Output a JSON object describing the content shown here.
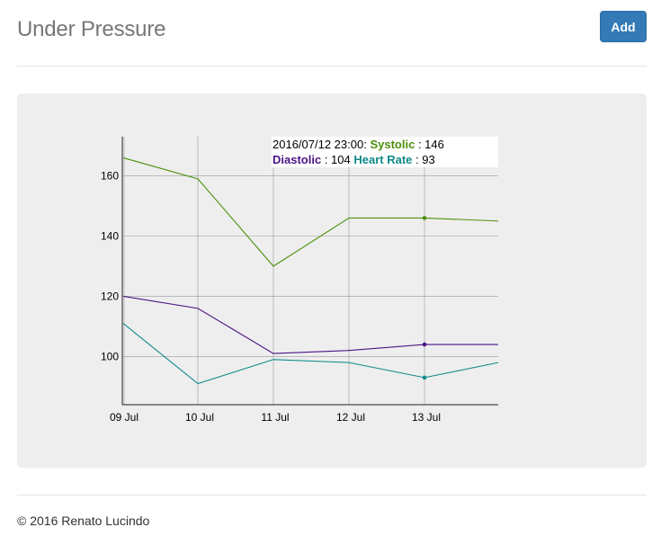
{
  "header": {
    "title": "Under Pressure",
    "add_label": "Add"
  },
  "footer": {
    "copyright": "© 2016 Renato Lucindo"
  },
  "colors": {
    "systolic": "#4d8f0a",
    "diastolic": "#4a1486",
    "heart_rate": "#0f8a8a",
    "primary_button": "#337ab7"
  },
  "tooltip": {
    "timestamp": "2016/07/12 23:00:",
    "systolic_label": "Systolic",
    "systolic_value": "146",
    "diastolic_label": "Diastolic",
    "diastolic_value": "104",
    "heart_rate_label": "Heart Rate",
    "heart_rate_value": "93"
  },
  "chart_data": {
    "type": "line",
    "x": [
      "2016-07-09",
      "2016-07-10",
      "2016-07-11",
      "2016-07-12",
      "2016-07-13",
      "2016-07-14"
    ],
    "x_tick_labels": [
      "09 Jul",
      "10 Jul",
      "11 Jul",
      "12 Jul",
      "13 Jul"
    ],
    "y_ticks": [
      100,
      120,
      140,
      160
    ],
    "ylim": [
      84,
      173
    ],
    "grid": true,
    "highlight_index": 4,
    "series": [
      {
        "key": "systolic",
        "values": [
          166,
          159,
          130,
          146,
          146,
          145
        ]
      },
      {
        "key": "diastolic",
        "values": [
          120,
          116,
          101,
          102,
          104,
          104
        ]
      },
      {
        "key": "heart_rate",
        "values": [
          111,
          91,
          99,
          98,
          93,
          98
        ]
      }
    ]
  }
}
